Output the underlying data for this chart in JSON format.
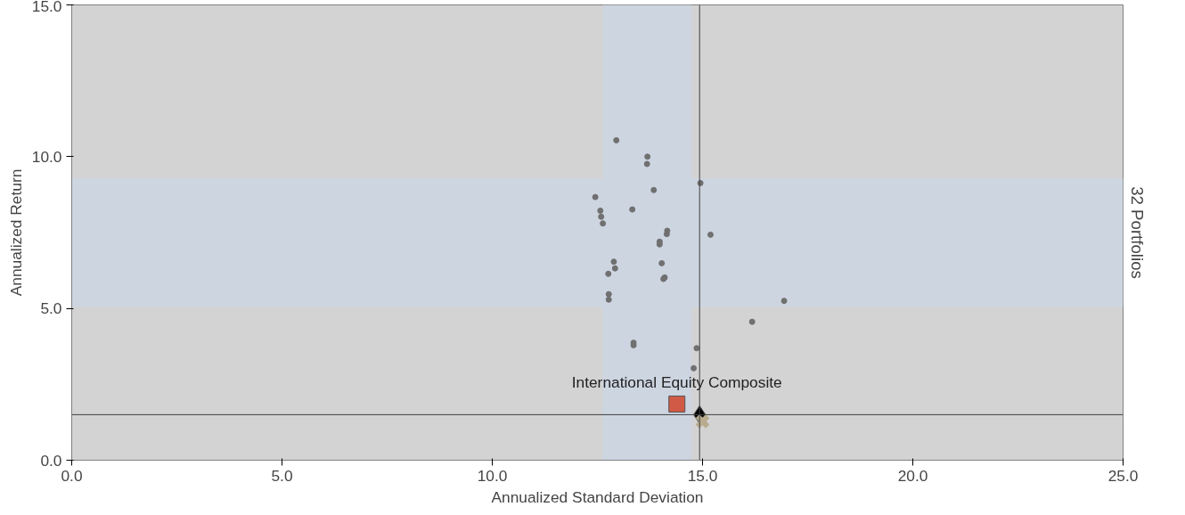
{
  "chart_data": {
    "type": "scatter",
    "xlabel": "Annualized Standard Deviation",
    "ylabel": "Annualized Return",
    "annotations": [
      "32 Portfolios"
    ],
    "xlim": [
      0,
      25
    ],
    "ylim": [
      0,
      15
    ],
    "xticks": [
      {
        "value": 0,
        "label": "0.0"
      },
      {
        "value": 5,
        "label": "5.0"
      },
      {
        "value": 10,
        "label": "10.0"
      },
      {
        "value": 15,
        "label": "15.0"
      },
      {
        "value": 20,
        "label": "20.0"
      },
      {
        "value": 25,
        "label": "25.0"
      }
    ],
    "yticks": [
      {
        "value": 0,
        "label": "0.0"
      },
      {
        "value": 5,
        "label": "5.0"
      },
      {
        "value": 10,
        "label": "10.0"
      },
      {
        "value": 15,
        "label": "15.0"
      }
    ],
    "grid": false,
    "bands": [
      {
        "axis": "x",
        "from": 12.62,
        "to": 14.74,
        "color": "#cdd5e1"
      },
      {
        "axis": "y",
        "from": 5.04,
        "to": 9.29,
        "color": "#cdd5e1"
      }
    ],
    "ref_lines": [
      {
        "axis": "x",
        "value": 14.93,
        "color": "#404040"
      },
      {
        "axis": "y",
        "value": 1.5,
        "color": "#404040"
      }
    ],
    "series": [
      {
        "color": "#707070",
        "marker": "circle",
        "x": [
          12.95,
          13.69,
          13.68,
          14.95,
          13.84,
          12.45,
          12.57,
          12.59,
          12.63,
          13.33,
          14.16,
          14.15,
          13.98,
          13.98,
          15.19,
          12.89,
          12.92,
          12.76,
          14.03,
          14.1,
          14.07,
          12.77,
          12.77,
          16.94,
          16.18,
          13.36,
          13.36,
          14.86,
          14.79
        ],
        "values": [
          10.54,
          10.0,
          9.76,
          9.13,
          8.9,
          8.67,
          8.22,
          8.02,
          7.8,
          8.26,
          7.56,
          7.45,
          7.2,
          7.11,
          7.43,
          6.54,
          6.32,
          6.14,
          6.49,
          6.02,
          5.97,
          5.47,
          5.29,
          5.25,
          4.56,
          3.87,
          3.79,
          3.69,
          3.03
        ]
      },
      {
        "name": "International Equity Composite",
        "color": "#d05a45",
        "marker": "square",
        "x": [
          14.39
        ],
        "values": [
          1.85
        ]
      },
      {
        "color": "#000000",
        "marker": "diamond",
        "x": [
          14.93
        ],
        "values": [
          1.5
        ]
      },
      {
        "color": "#b8ab8e",
        "marker": "cross",
        "x": [
          15.0
        ],
        "values": [
          1.28
        ]
      }
    ]
  }
}
